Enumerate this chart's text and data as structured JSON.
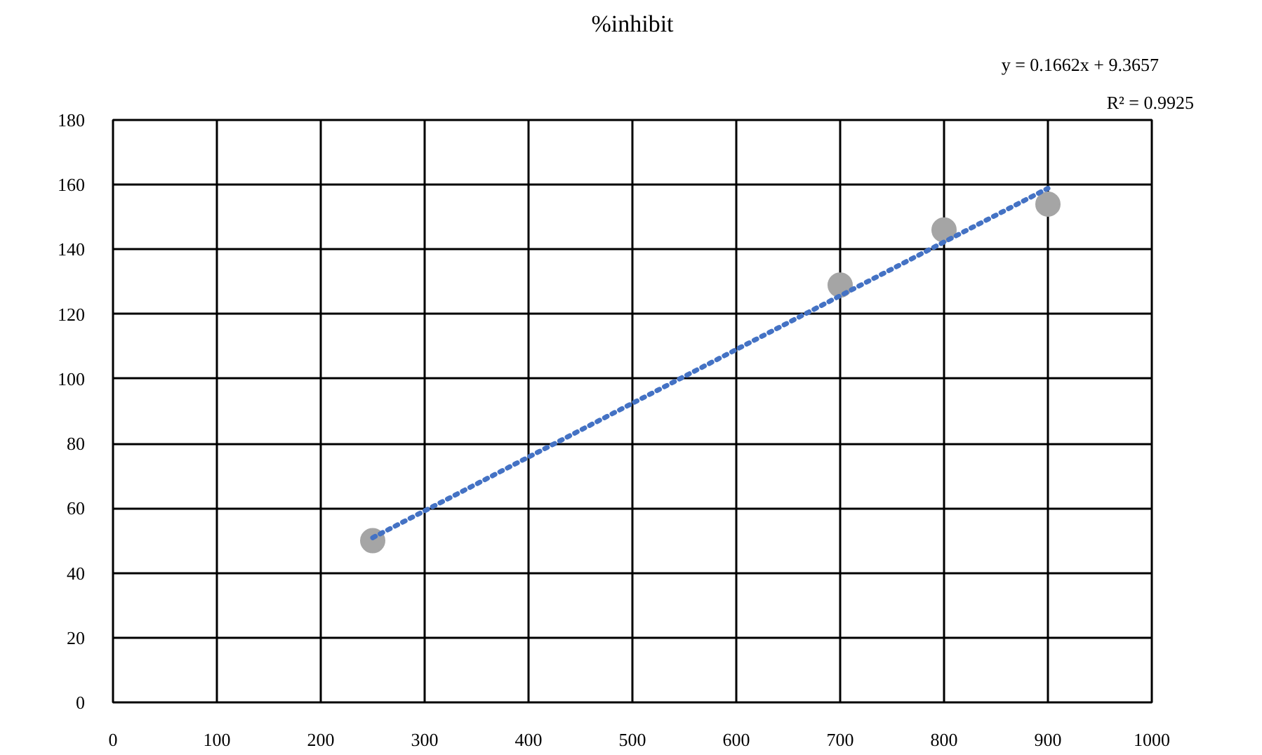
{
  "chart_data": {
    "type": "scatter",
    "title": "%inhibit",
    "x": [
      250,
      700,
      800,
      900
    ],
    "series": [
      {
        "color": "#a5a5a5",
        "values": [
          50,
          129,
          146,
          154
        ],
        "marker": "circle"
      },
      {
        "type": "line",
        "color": "#4472c4",
        "x": [
          250,
          900
        ],
        "values": [
          50.9,
          158.9
        ],
        "line_style": "dotted",
        "marker": "none"
      }
    ],
    "annotations": [
      "y = 0.1662x + 9.3657",
      "R² = 0.9925"
    ],
    "xlim": [
      0,
      1000
    ],
    "xticks": [
      0,
      100,
      200,
      300,
      400,
      500,
      600,
      700,
      800,
      900,
      1000
    ],
    "ylim": [
      0,
      180
    ],
    "yticks": [
      0,
      20,
      40,
      60,
      80,
      100,
      120,
      140,
      160,
      180
    ],
    "grid": true
  }
}
